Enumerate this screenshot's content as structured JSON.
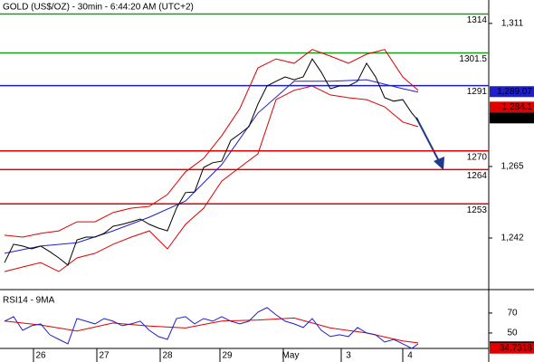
{
  "chart_data": [
    {
      "type": "line",
      "title": "GOLD (US$/OZ) - 30min - 6:44:20 AM (UTC+2)",
      "xlim": [
        0,
        135
      ],
      "ylim": [
        1226,
        1316.2
      ],
      "yticks": [
        {
          "value": 1311,
          "label": "1,311"
        },
        {
          "value": 1265,
          "label": "1,265"
        },
        {
          "value": 1242,
          "label": "1,242"
        }
      ],
      "levels": [
        {
          "value": 1314,
          "color": "#1a9a1a"
        },
        {
          "value": 1301.5,
          "color": "#1a9a1a"
        },
        {
          "value": 1291,
          "color": "#1f1fc8"
        },
        {
          "value": 1270,
          "color": "#e00000"
        },
        {
          "value": 1264,
          "color": "#e00000"
        },
        {
          "value": 1253,
          "color": "#e00000"
        }
      ],
      "price_tags": [
        {
          "value": 1289.07,
          "label": "1,289.07",
          "color": "#1f1fc8"
        },
        {
          "value": 1284.1,
          "label": "1,284.1",
          "color": "#e00000"
        },
        {
          "value": 1280.61,
          "label": "1,280.61",
          "color": "#000000"
        }
      ],
      "series": [
        {
          "color": "#e00000",
          "x": [
            1.25,
            6.25,
            11.25,
            16.25,
            21.25,
            26.25,
            31.25,
            36.25,
            41.25,
            46.25,
            51.25,
            56.25,
            61.25,
            66.25,
            71.25,
            76.25,
            81.25,
            86.25,
            91.25,
            96.25,
            101.25,
            106.25,
            111.25,
            115.5
          ],
          "values": [
            1242.9,
            1242.3,
            1243.5,
            1244.3,
            1247.2,
            1247.2,
            1250.2,
            1251.6,
            1252.2,
            1256,
            1263.3,
            1267.6,
            1274.9,
            1283.6,
            1296.7,
            1299.6,
            1298.2,
            1302.6,
            1300.5,
            1298.2,
            1301.1,
            1302.6,
            1293.8,
            1289.5
          ]
        },
        {
          "color": "#e00000",
          "x": [
            1.25,
            6.25,
            11.25,
            16.25,
            21.25,
            26.25,
            31.25,
            36.25,
            41.25,
            46.25,
            51.25,
            56.25,
            61.25,
            66.25,
            71.25,
            76.25,
            81.25,
            86.25,
            91.25,
            96.25,
            101.25,
            106.25,
            111.25,
            115.5
          ],
          "values": [
            1231.2,
            1232.7,
            1234.1,
            1231.2,
            1235.6,
            1237.1,
            1240,
            1242.3,
            1244.3,
            1238.5,
            1246.4,
            1251.6,
            1260.3,
            1264.7,
            1269.1,
            1286.5,
            1289.5,
            1290.9,
            1288,
            1287.1,
            1286.5,
            1284.2,
            1279.3,
            1277.8
          ]
        },
        {
          "color": "#1f1fc8",
          "x": [
            1.25,
            11.25,
            21.25,
            31.25,
            41.25,
            51.25,
            61.25,
            71.25,
            81.25,
            91.25,
            101.25,
            111.25,
            115.5
          ],
          "values": [
            1237.1,
            1239.4,
            1240.5,
            1244.3,
            1248.7,
            1253.9,
            1265.6,
            1282.2,
            1292.4,
            1292.4,
            1292.9,
            1290,
            1288.9
          ]
        },
        {
          "color": "#000000",
          "x": [
            1.25,
            3.75,
            6.25,
            8.75,
            11.25,
            13.75,
            16.25,
            18.75,
            21.25,
            23.75,
            26.25,
            28.75,
            31.25,
            33.75,
            36.25,
            38.75,
            41.25,
            43.75,
            46.25,
            48.75,
            51.25,
            53.75,
            56.25,
            58.75,
            61.25,
            63.75,
            66.25,
            68.75,
            71.25,
            73.75,
            76.25,
            78.75,
            81.25,
            83.75,
            86.25,
            88.75,
            91.25,
            93.75,
            96.25,
            98.75,
            101.25,
            103.75,
            106.25,
            108.75,
            111.25,
            113.75,
            115.5
          ],
          "values": [
            1234.1,
            1240,
            1239.4,
            1238.5,
            1239.4,
            1237.6,
            1235.6,
            1233.3,
            1241.4,
            1242.3,
            1242.3,
            1243.5,
            1245.8,
            1246.4,
            1247.2,
            1248.1,
            1246.4,
            1245.2,
            1244.3,
            1251.6,
            1256.6,
            1256.8,
            1264.7,
            1266.2,
            1266.7,
            1273.4,
            1275.5,
            1277.8,
            1285.1,
            1290.9,
            1292.4,
            1293.8,
            1292.9,
            1293.8,
            1299.6,
            1295.3,
            1290,
            1290.9,
            1290.9,
            1292.4,
            1298.2,
            1293.8,
            1287.1,
            1286,
            1286.5,
            1282.2,
            1279.8
          ]
        }
      ]
    },
    {
      "type": "line",
      "title": "RSI14 - 9MA",
      "xlim": [
        0,
        135
      ],
      "ylim": [
        34.5,
        89
      ],
      "yticks": [
        70,
        50
      ],
      "xticks": [
        {
          "value": 9.25,
          "label": "26"
        },
        {
          "value": 26.75,
          "label": "27"
        },
        {
          "value": 44.25,
          "label": "28"
        },
        {
          "value": 60.75,
          "label": "29"
        },
        {
          "value": 78.25,
          "label": "May"
        },
        {
          "value": 94.25,
          "label": "3"
        },
        {
          "value": 111.25,
          "label": "4"
        }
      ],
      "value_tags": [
        {
          "value": 36.0522,
          "color": "#000000"
        },
        {
          "value": 34.7318,
          "color": "#e00000"
        }
      ],
      "series": [
        {
          "color": "#e00000",
          "x": [
            1.25,
            11.25,
            21.25,
            31.25,
            41.25,
            51.25,
            61.25,
            71.25,
            81.25,
            91.25,
            101.25,
            111.25,
            115.5
          ],
          "values": [
            62,
            58,
            52,
            60,
            57,
            55,
            62,
            63,
            65,
            55,
            50,
            42,
            40
          ]
        },
        {
          "color": "#1f1fc8",
          "x": [
            1.25,
            3.75,
            6.25,
            8.75,
            11.25,
            13.75,
            16.25,
            18.75,
            21.25,
            23.75,
            26.25,
            28.75,
            31.25,
            33.75,
            36.25,
            38.75,
            41.25,
            43.75,
            46.25,
            48.75,
            51.25,
            53.75,
            56.25,
            58.75,
            61.25,
            63.75,
            66.25,
            68.75,
            71.25,
            73.75,
            76.25,
            78.75,
            81.25,
            83.75,
            86.25,
            88.75,
            91.25,
            93.75,
            96.25,
            98.75,
            101.25,
            103.75,
            106.25,
            108.75,
            111.25,
            113.75,
            115.5
          ],
          "values": [
            61.8,
            66.4,
            52.7,
            57.3,
            59.1,
            48.2,
            43.6,
            39.1,
            64.5,
            61.8,
            59.1,
            64.5,
            61.8,
            57.3,
            59.1,
            61.8,
            52.7,
            46.4,
            43.6,
            64.5,
            66.4,
            59.1,
            64.5,
            61.8,
            66.4,
            61.8,
            59.1,
            61.8,
            70.9,
            75.5,
            68.2,
            61.8,
            59.1,
            55.5,
            64.5,
            52.7,
            46.4,
            48.2,
            46.4,
            55.5,
            50,
            48.2,
            40.9,
            43.6,
            39.1,
            34.5,
            39.1
          ]
        }
      ]
    }
  ]
}
